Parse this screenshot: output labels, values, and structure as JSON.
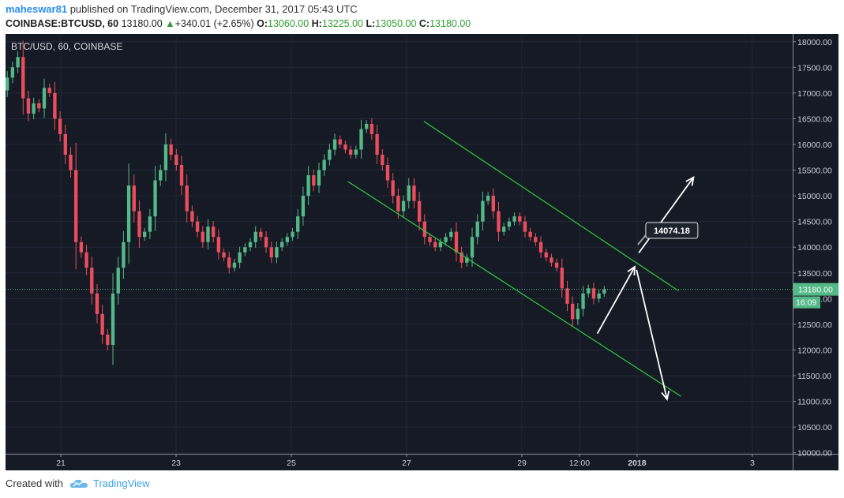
{
  "header": {
    "author": "maheswar81",
    "published_text": "published on TradingView.com, December 31, 2017 05:43 UTC",
    "symbol": "COINBASE:BTCUSD, 60",
    "last": "13180.00",
    "change": "+340.01 (+2.65%)",
    "o_label": "O:",
    "o_value": "13060.00",
    "h_label": "H:",
    "h_value": "13225.00",
    "l_label": "L:",
    "l_value": "13050.00",
    "c_label": "C:",
    "c_value": "13180.00"
  },
  "footer": {
    "created_with": "Created with",
    "brand": "TradingView"
  },
  "colors": {
    "background": "#161a25",
    "grid": "#232838",
    "up": "#53b987",
    "down": "#eb4d5c",
    "channel": "#2ecc40",
    "arrow": "#ffffff",
    "price_line": "#53b987"
  },
  "chart_data": {
    "type": "candlestick",
    "title": "BTC/USD, 60, COINBASE",
    "x_ticks": [
      {
        "t": 1,
        "label": "21"
      },
      {
        "t": 3,
        "label": "23"
      },
      {
        "t": 5,
        "label": "25"
      },
      {
        "t": 7,
        "label": "27"
      },
      {
        "t": 9,
        "label": "29"
      },
      {
        "t": 10,
        "label": "12:00"
      },
      {
        "t": 11,
        "label": "2018"
      },
      {
        "t": 13,
        "label": "3"
      }
    ],
    "x_range": [
      0.04,
      13.7
    ],
    "ylim": [
      9980,
      18150
    ],
    "y_ticks": [
      10000,
      10500,
      11000,
      11500,
      12000,
      12500,
      13000,
      13500,
      14000,
      14500,
      15000,
      15500,
      16000,
      16500,
      17000,
      17500,
      18000
    ],
    "last_price": "13180.00",
    "countdown": "16:09",
    "candles_close": [
      17300,
      17500,
      17700,
      16900,
      16600,
      16800,
      16700,
      17100,
      17000,
      16500,
      16200,
      15800,
      15500,
      14100,
      13900,
      13600,
      13100,
      12700,
      12300,
      12100,
      13100,
      13600,
      14100,
      15200,
      14700,
      14200,
      14300,
      14600,
      15300,
      15500,
      16000,
      15800,
      15600,
      15200,
      14700,
      14500,
      14300,
      14100,
      14400,
      14200,
      13900,
      13800,
      13600,
      13700,
      13900,
      14000,
      14100,
      14300,
      14200,
      14000,
      13800,
      14000,
      14100,
      14200,
      14300,
      14600,
      15000,
      15400,
      15200,
      15500,
      15700,
      15900,
      16100,
      16000,
      15900,
      15800,
      15900,
      16300,
      16400,
      16200,
      15800,
      15600,
      15300,
      15000,
      14700,
      14900,
      15200,
      14900,
      14500,
      14200,
      14100,
      14000,
      14100,
      14200,
      14300,
      13900,
      13700,
      13800,
      14200,
      14500,
      14900,
      15000,
      14700,
      14300,
      14400,
      14500,
      14600,
      14500,
      14300,
      14200,
      14100,
      13900,
      13800,
      13700,
      13600,
      13200,
      12900,
      12600,
      12800,
      13100,
      13200,
      13000,
      13100,
      13180
    ],
    "channel_upper": [
      {
        "t": 7.3,
        "p": 16450
      },
      {
        "t": 11.72,
        "p": 13150
      }
    ],
    "channel_lower": [
      {
        "t": 5.98,
        "p": 15280
      },
      {
        "t": 11.76,
        "p": 11100
      }
    ],
    "arrows": [
      {
        "from": {
          "t": 10.31,
          "p": 12320
        },
        "to": {
          "t": 10.96,
          "p": 13620
        }
      },
      {
        "from": {
          "t": 10.99,
          "p": 13560
        },
        "to": {
          "t": 11.52,
          "p": 11040
        }
      },
      {
        "from": {
          "t": 11.03,
          "p": 13890
        },
        "to": {
          "t": 11.98,
          "p": 15360
        }
      }
    ],
    "annotation": {
      "label": "14074.18",
      "t": 11.15,
      "p": 14480
    }
  }
}
